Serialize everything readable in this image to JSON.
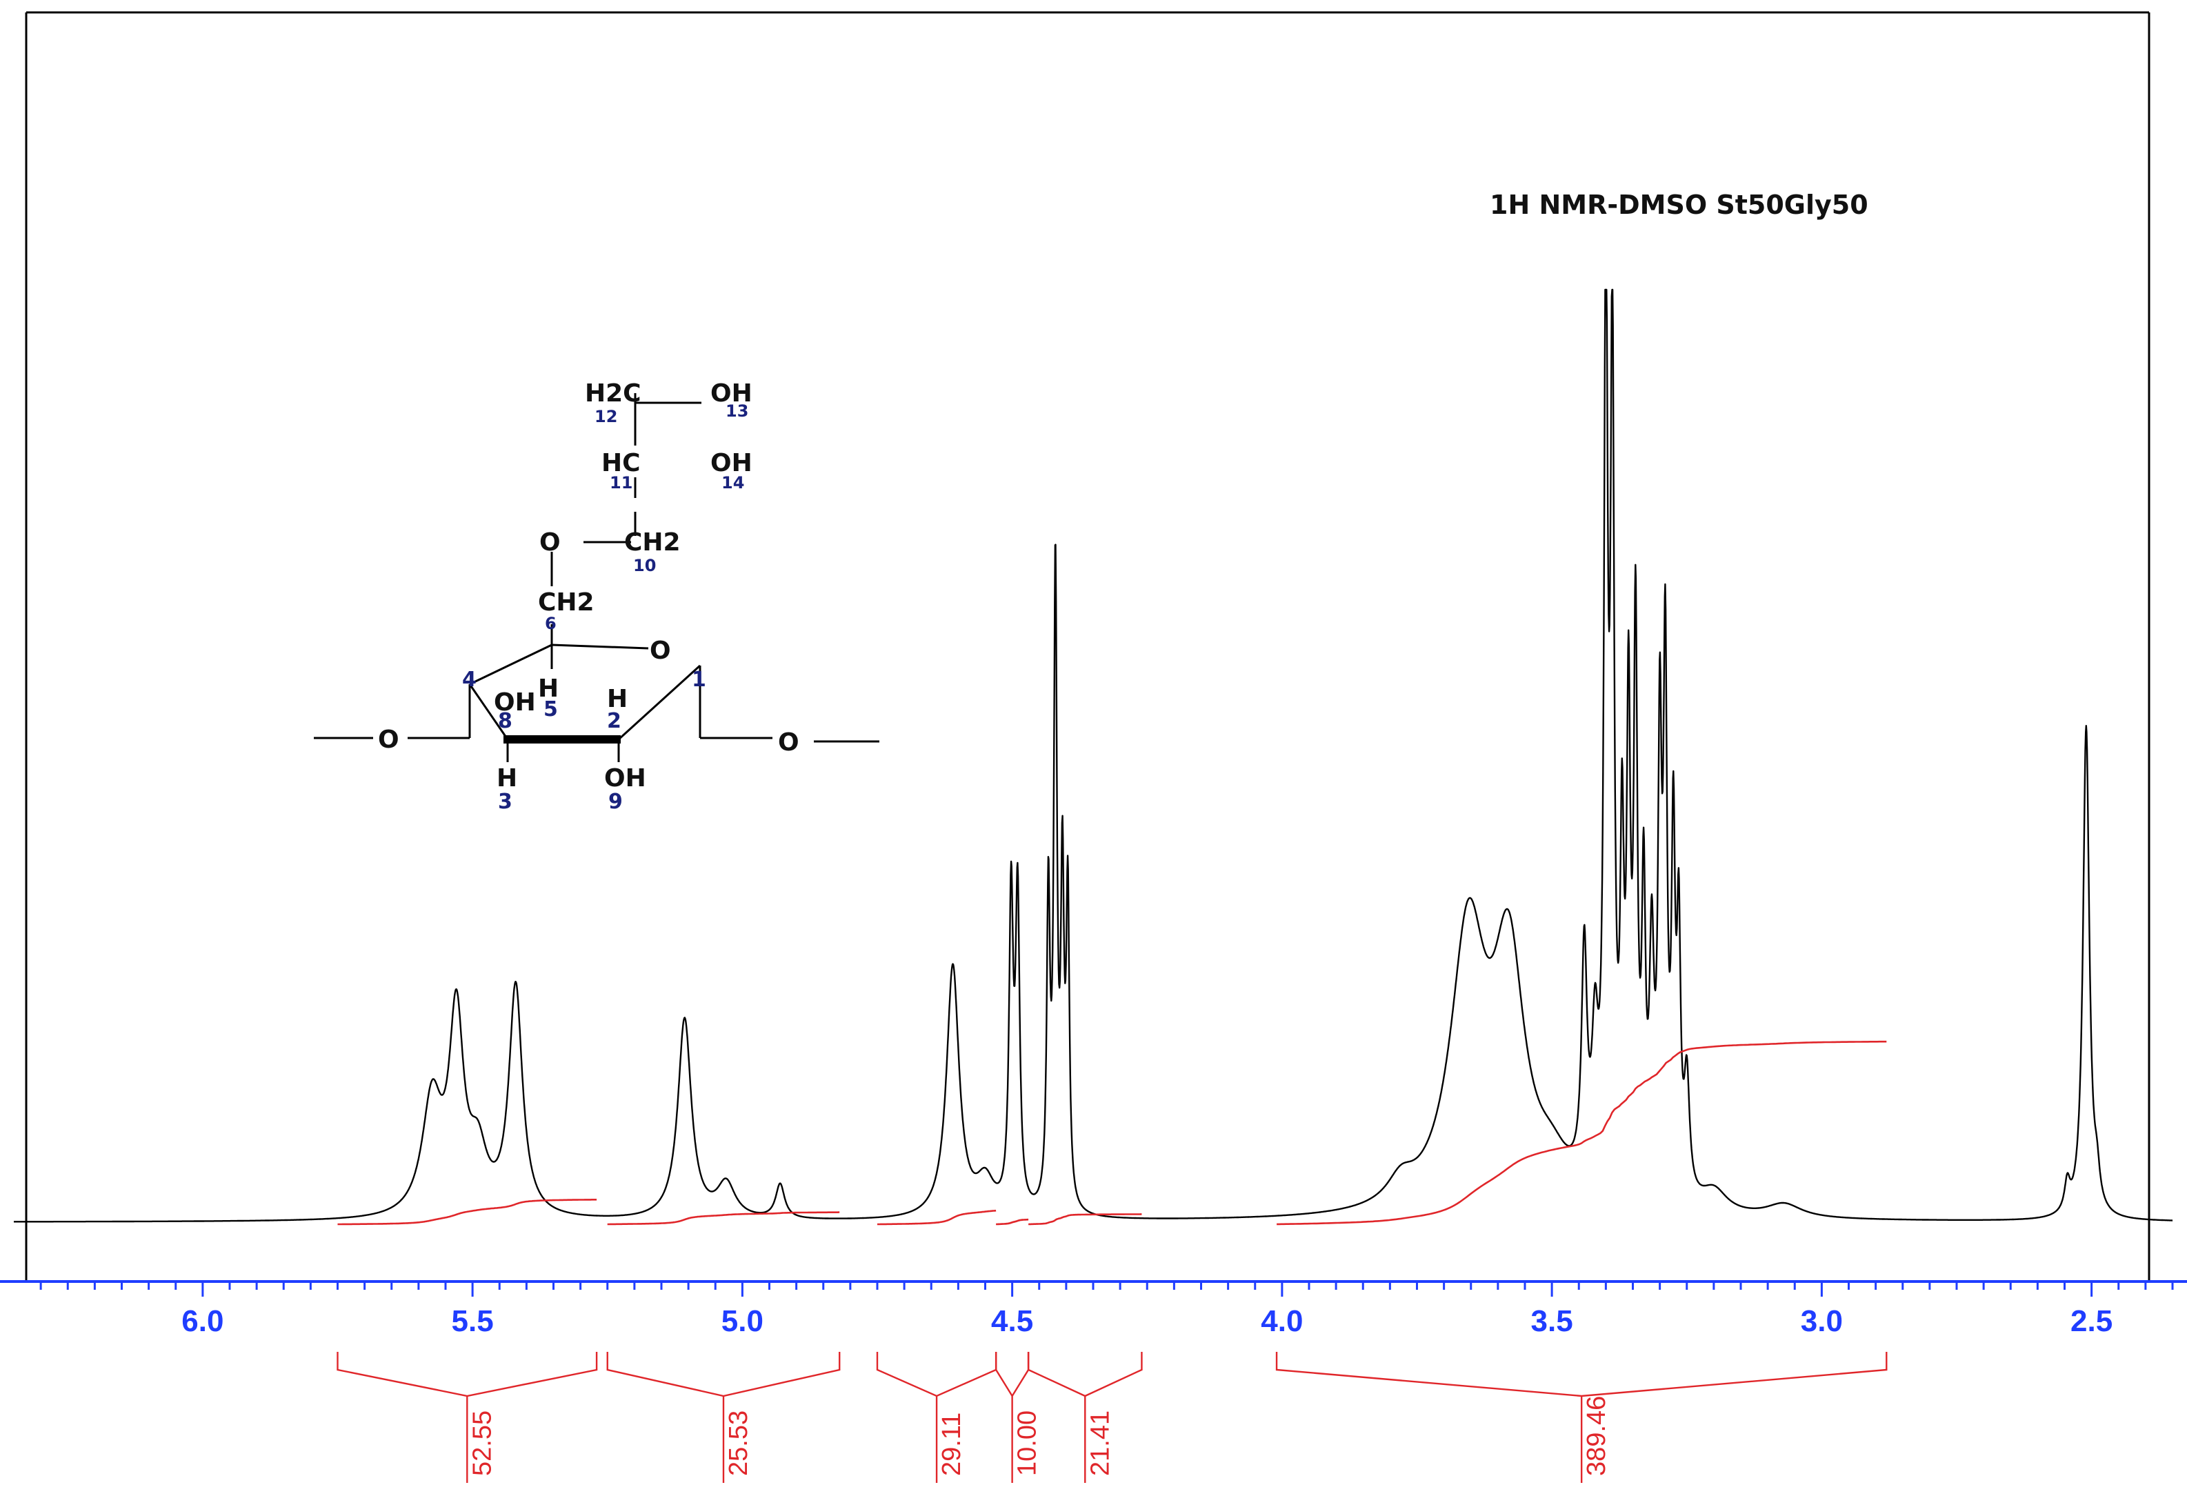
{
  "chart_data": {
    "type": "line",
    "title": "1H NMR-DMSO  St50Gly50",
    "xlabel": "",
    "ylabel": "",
    "xlim": [
      6.35,
      2.35
    ],
    "x_reversed": true,
    "grid": false,
    "legend": "none",
    "line_color": "#000000",
    "integral_color": "#e0262a",
    "tick_color": "#1f3dff",
    "ticks": [
      {
        "value": 6.0,
        "label": "6.0"
      },
      {
        "value": 5.5,
        "label": "5.5"
      },
      {
        "value": 5.0,
        "label": "5.0"
      },
      {
        "value": 4.5,
        "label": "4.5"
      },
      {
        "value": 4.0,
        "label": "4.0"
      },
      {
        "value": 3.5,
        "label": "3.5"
      },
      {
        "value": 3.0,
        "label": "3.0"
      },
      {
        "value": 2.5,
        "label": "2.5"
      }
    ],
    "peaks": [
      {
        "ppm": 5.575,
        "height": 0.1,
        "width": 0.022
      },
      {
        "ppm": 5.53,
        "height": 0.17,
        "width": 0.016
      },
      {
        "ppm": 5.49,
        "height": 0.05,
        "width": 0.02
      },
      {
        "ppm": 5.42,
        "height": 0.2,
        "width": 0.015
      },
      {
        "ppm": 5.107,
        "height": 0.175,
        "width": 0.015
      },
      {
        "ppm": 5.03,
        "height": 0.03,
        "width": 0.02
      },
      {
        "ppm": 4.93,
        "height": 0.03,
        "width": 0.01
      },
      {
        "ppm": 4.61,
        "height": 0.22,
        "width": 0.014
      },
      {
        "ppm": 4.55,
        "height": 0.03,
        "width": 0.02
      },
      {
        "ppm": 4.502,
        "height": 0.27,
        "width": 0.0045
      },
      {
        "ppm": 4.49,
        "height": 0.27,
        "width": 0.0045
      },
      {
        "ppm": 4.433,
        "height": 0.27,
        "width": 0.0035
      },
      {
        "ppm": 4.42,
        "height": 0.55,
        "width": 0.0035
      },
      {
        "ppm": 4.407,
        "height": 0.28,
        "width": 0.0035
      },
      {
        "ppm": 4.397,
        "height": 0.27,
        "width": 0.0035
      },
      {
        "ppm": 3.78,
        "height": 0.02,
        "width": 0.03
      },
      {
        "ppm": 3.655,
        "height": 0.24,
        "width": 0.04
      },
      {
        "ppm": 3.58,
        "height": 0.21,
        "width": 0.035
      },
      {
        "ppm": 3.5,
        "height": 0.03,
        "width": 0.04
      },
      {
        "ppm": 3.44,
        "height": 0.2,
        "width": 0.006
      },
      {
        "ppm": 3.42,
        "height": 0.12,
        "width": 0.007
      },
      {
        "ppm": 3.4,
        "height": 0.8,
        "width": 0.004
      },
      {
        "ppm": 3.388,
        "height": 0.72,
        "width": 0.004
      },
      {
        "ppm": 3.37,
        "height": 0.28,
        "width": 0.004
      },
      {
        "ppm": 3.358,
        "height": 0.4,
        "width": 0.004
      },
      {
        "ppm": 3.345,
        "height": 0.48,
        "width": 0.004
      },
      {
        "ppm": 3.33,
        "height": 0.25,
        "width": 0.004
      },
      {
        "ppm": 3.315,
        "height": 0.2,
        "width": 0.005
      },
      {
        "ppm": 3.3,
        "height": 0.38,
        "width": 0.004
      },
      {
        "ppm": 3.29,
        "height": 0.45,
        "width": 0.004
      },
      {
        "ppm": 3.275,
        "height": 0.3,
        "width": 0.004
      },
      {
        "ppm": 3.265,
        "height": 0.22,
        "width": 0.004
      },
      {
        "ppm": 3.25,
        "height": 0.1,
        "width": 0.006
      },
      {
        "ppm": 3.2,
        "height": 0.02,
        "width": 0.03
      },
      {
        "ppm": 3.07,
        "height": 0.012,
        "width": 0.04
      },
      {
        "ppm": 2.545,
        "height": 0.025,
        "width": 0.006
      },
      {
        "ppm": 2.51,
        "height": 0.43,
        "width": 0.007
      },
      {
        "ppm": 2.49,
        "height": 0.025,
        "width": 0.006
      }
    ],
    "integrals": [
      {
        "start": 5.75,
        "end": 5.27,
        "value": 52.55,
        "label": "52.55"
      },
      {
        "start": 5.25,
        "end": 4.82,
        "value": 25.53,
        "label": "25.53"
      },
      {
        "start": 4.75,
        "end": 4.53,
        "value": 29.11,
        "label": "29.11"
      },
      {
        "start": 4.53,
        "end": 4.47,
        "value": 10.0,
        "label": "10.00"
      },
      {
        "start": 4.47,
        "end": 4.26,
        "value": 21.41,
        "label": "21.41"
      },
      {
        "start": 4.01,
        "end": 2.88,
        "value": 389.46,
        "label": "389.46"
      }
    ]
  },
  "structure": {
    "atoms": {
      "h2c_top": "H2C",
      "oh_13": "OH",
      "hc_11": "HC",
      "oh_14": "OH",
      "o_ether": "O",
      "ch2_10": "CH2",
      "ch2_6": "CH2",
      "o_ring": "O",
      "oh_8": "OH",
      "h_5": "H",
      "h_2": "H",
      "h_3": "H",
      "oh_9": "OH",
      "o_left": "O",
      "o_right": "O"
    },
    "numbers": {
      "n12": "12",
      "n13": "13",
      "n11": "11",
      "n14": "14",
      "n10": "10",
      "n6": "6",
      "n4": "4",
      "n1": "1",
      "n8": "8",
      "n5": "5",
      "n2": "2",
      "n3": "3",
      "n9": "9"
    }
  }
}
